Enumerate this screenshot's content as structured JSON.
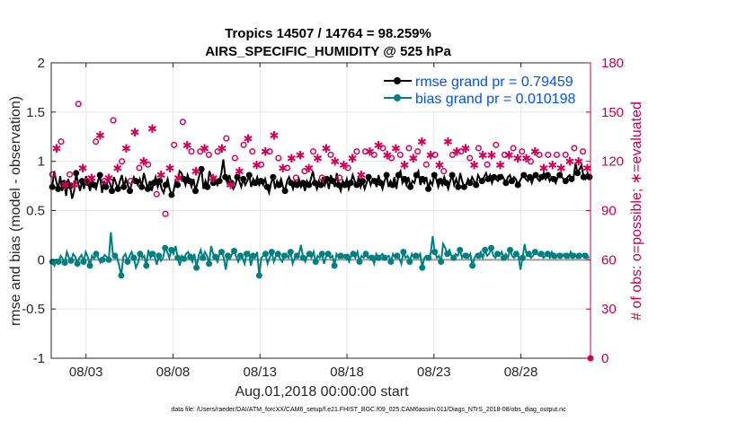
{
  "chart_data": {
    "type": "line",
    "title_line1": "Tropics 14507 / 14764 = 98.259%",
    "title_line2": "AIRS_SPECIFIC_HUMIDITY @ 525 hPa",
    "xlabel": "Aug.01,2018 00:00:00 start",
    "ylabel": "rmse and bias (model - observation)",
    "ylabel_right": "# of obs: o=possible; ∗=evaluated",
    "xlim": [
      0,
      31
    ],
    "ylim": [
      -1,
      2
    ],
    "ylim_right": [
      0,
      180
    ],
    "x_ticks": [
      {
        "value": 2,
        "label": "08/03"
      },
      {
        "value": 7,
        "label": "08/08"
      },
      {
        "value": 12,
        "label": "08/13"
      },
      {
        "value": 17,
        "label": "08/18"
      },
      {
        "value": 22,
        "label": "08/23"
      },
      {
        "value": 27,
        "label": "08/28"
      }
    ],
    "y_ticks": [
      {
        "value": -1,
        "label": "-1"
      },
      {
        "value": -0.5,
        "label": "-0.5"
      },
      {
        "value": 0,
        "label": "0"
      },
      {
        "value": 0.5,
        "label": "0.5"
      },
      {
        "value": 1,
        "label": "1"
      },
      {
        "value": 1.5,
        "label": "1.5"
      },
      {
        "value": 2,
        "label": "2"
      }
    ],
    "y_ticks_right": [
      {
        "value": 0,
        "label": "0"
      },
      {
        "value": 30,
        "label": "30"
      },
      {
        "value": 60,
        "label": "60"
      },
      {
        "value": 90,
        "label": "90"
      },
      {
        "value": 120,
        "label": "120"
      },
      {
        "value": 150,
        "label": "150"
      },
      {
        "value": 180,
        "label": "180"
      }
    ],
    "grid": true,
    "legend_position": "top-right",
    "series": [
      {
        "name": "rmse grand pr = 0.79459",
        "axis": "left",
        "color": "#000000",
        "values": [
          0.74,
          0.9,
          0.8,
          0.72,
          0.85,
          0.7,
          0.78,
          0.65,
          0.82,
          0.75,
          0.62,
          0.7,
          0.88,
          0.78,
          0.7,
          0.8,
          0.72,
          0.85,
          0.78,
          0.7,
          0.82,
          0.76,
          0.72,
          0.8,
          0.86,
          0.68,
          0.8,
          0.74,
          0.82,
          0.78,
          0.7,
          0.84,
          0.78,
          0.72,
          0.8,
          0.86,
          0.74,
          0.82,
          0.76,
          0.7,
          0.78,
          0.84,
          0.8,
          0.76,
          0.82,
          0.74,
          0.88,
          0.8,
          0.72,
          0.8,
          0.7,
          0.78,
          0.84,
          0.74,
          0.8,
          0.72,
          0.68,
          0.76,
          0.82,
          0.72,
          0.66,
          0.7,
          0.8,
          0.76,
          0.9,
          0.88,
          0.82,
          0.76,
          0.86,
          0.8,
          0.74,
          0.82,
          0.7,
          0.78,
          0.86,
          0.92,
          0.72,
          0.8,
          0.74,
          0.9,
          0.84,
          0.78,
          0.82,
          0.76,
          0.8,
          0.88,
          1.02,
          0.84,
          0.78,
          0.86,
          0.78,
          0.72,
          0.76,
          0.84,
          0.8,
          0.74,
          0.82,
          0.76,
          0.8,
          0.86,
          0.74,
          0.82,
          0.78,
          0.84,
          0.76,
          0.8,
          0.76,
          0.82,
          0.74,
          0.68,
          0.78,
          0.84,
          0.72,
          0.8,
          0.76,
          0.82,
          0.74,
          0.7,
          0.8,
          0.84,
          0.78,
          0.72,
          0.8,
          0.76,
          0.82,
          0.74,
          0.78,
          0.7,
          0.8,
          0.76,
          0.82,
          0.9,
          0.78,
          0.72,
          0.8,
          0.76,
          0.84,
          0.76,
          0.82,
          0.72,
          0.86,
          0.8,
          0.74,
          0.88,
          0.76,
          0.7,
          0.8,
          0.76,
          0.82,
          0.72,
          0.78,
          0.86,
          0.8,
          0.76,
          0.84,
          0.74,
          0.8,
          0.72,
          0.78,
          0.84,
          0.76,
          0.82,
          0.8,
          0.74,
          0.86,
          0.78,
          0.72,
          0.8,
          0.86,
          0.74,
          0.8,
          0.76,
          0.84,
          0.72,
          0.86,
          0.9,
          0.78,
          0.82,
          0.76,
          0.84,
          0.74,
          0.8,
          0.78,
          0.86,
          0.9,
          0.76,
          0.82,
          0.78,
          0.84,
          0.72,
          0.8,
          0.76,
          0.86,
          0.82,
          0.74,
          0.8,
          0.76,
          0.84,
          0.78,
          0.72,
          0.8,
          0.86,
          0.76,
          0.82,
          0.74,
          0.88,
          0.8,
          0.74,
          0.76,
          0.82,
          0.78,
          0.84,
          0.8,
          0.76,
          0.86,
          0.82,
          0.8,
          0.84,
          0.88,
          0.82,
          0.86,
          0.78,
          0.84,
          0.82,
          0.8,
          0.84,
          0.86,
          0.82,
          0.78,
          0.84,
          0.86,
          0.8,
          0.84,
          0.82,
          0.76,
          0.8,
          0.84,
          0.86,
          0.82,
          0.8,
          0.84,
          0.78,
          0.84,
          0.86,
          0.82,
          0.8,
          0.84,
          0.88,
          0.82,
          0.86,
          0.8,
          0.84,
          0.82,
          0.78,
          0.84,
          0.86,
          0.84,
          0.82,
          0.8,
          0.84,
          0.86,
          0.82,
          0.84,
          0.98,
          0.88,
          0.92,
          0.96,
          0.84,
          0.82,
          0.88,
          0.84
        ]
      },
      {
        "name": "bias grand pr = 0.010198",
        "axis": "left",
        "color": "#008080",
        "values": [
          -0.02,
          -0.06,
          0.0,
          -0.02,
          0.04,
          0.01,
          -0.03,
          0.08,
          0.02,
          -0.01,
          0.06,
          0.03,
          -0.04,
          0.02,
          0.05,
          -0.02,
          0.08,
          0.03,
          -0.06,
          0.04,
          0.01,
          0.06,
          0.02,
          -0.03,
          0.0,
          0.05,
          0.03,
          0.0,
          0.28,
          0.06,
          0.04,
          0.02,
          -0.06,
          -0.16,
          0.03,
          0.06,
          -0.02,
          0.04,
          0.08,
          0.02,
          -0.08,
          -0.03,
          0.06,
          0.02,
          0.04,
          -0.06,
          0.1,
          0.02,
          0.06,
          0.03,
          -0.05,
          0.04,
          -0.01,
          0.02,
          0.12,
          0.08,
          0.02,
          0.1,
          0.06,
          0.14,
          0.02,
          -0.06,
          0.04,
          0.01,
          0.06,
          0.08,
          0.03,
          -0.02,
          0.06,
          -0.08,
          0.04,
          0.1,
          0.02,
          0.08,
          0.04,
          -0.04,
          0.14,
          0.06,
          0.03,
          -0.02,
          0.06,
          0.08,
          0.02,
          -0.1,
          0.04,
          0.01,
          0.06,
          0.09,
          0.03,
          -0.02,
          0.04,
          0.02,
          -0.04,
          0.06,
          0.08,
          -0.06,
          0.04,
          0.02,
          0.08,
          -0.16,
          0.02,
          0.04,
          0.06,
          -0.04,
          0.02,
          0.08,
          -0.02,
          0.04,
          0.06,
          0.01,
          -0.02,
          0.04,
          0.06,
          0.02,
          0.08,
          -0.04,
          0.02,
          0.04,
          0.06,
          0.15,
          0.02,
          -0.02,
          0.04,
          0.06,
          0.02,
          0.08,
          -0.02,
          0.04,
          0.02,
          0.06,
          -0.04,
          0.03,
          0.06,
          0.02,
          0.04,
          -0.06,
          0.06,
          0.02,
          0.04,
          0.02,
          0.05,
          0.03,
          -0.02,
          0.04,
          0.06,
          0.02,
          0.08,
          -0.02,
          0.04,
          0.02,
          0.06,
          0.02,
          0.04,
          0.02,
          -0.04,
          0.06,
          0.02,
          0.04,
          0.06,
          0.02,
          0.03,
          0.04,
          -0.02,
          0.06,
          0.02,
          0.04,
          0.02,
          -0.04,
          0.08,
          0.02,
          0.04,
          -0.02,
          0.06,
          0.02,
          0.04,
          0.02,
          0.06,
          -0.08,
          0.02,
          0.04,
          0.02,
          0.06,
          0.24,
          0.08,
          0.02,
          0.04,
          -0.02,
          0.16,
          0.12,
          0.06,
          0.1,
          0.04,
          0.02,
          0.06,
          0.04,
          0.1,
          0.02,
          0.06,
          0.04,
          0.02,
          0.06,
          -0.06,
          0.02,
          0.06,
          0.04,
          0.08,
          0.02,
          0.1,
          0.04,
          0.06,
          0.12,
          0.04,
          0.02,
          0.06,
          0.04,
          0.08,
          0.02,
          0.06,
          0.02,
          0.1,
          0.04,
          0.02,
          0.06,
          0.04,
          -0.1,
          0.02,
          0.16,
          0.04,
          0.06,
          0.02,
          0.04,
          0.08,
          0.06,
          0.04,
          0.06,
          0.02,
          0.04,
          0.06,
          0.02,
          0.08,
          0.04,
          0.02,
          0.06,
          0.04,
          0.03,
          0.06,
          0.04,
          0.02,
          0.08,
          0.04,
          0.06,
          0.02,
          0.04,
          0.03,
          0.06,
          0.04,
          0.02,
          0.03
        ]
      },
      {
        "name": "possible",
        "axis": "right",
        "color": "#d6005a",
        "marker": "circle",
        "values": [
          112,
          90,
          131,
          115,
          132,
          118,
          108,
          96,
          112,
          120,
          108,
          124,
          155,
          112,
          118,
          134,
          108,
          124,
          112,
          146,
          132,
          120,
          138,
          110,
          108,
          124,
          112,
          116,
          145,
          118,
          118,
          111,
          120,
          146,
          130,
          114,
          108,
          122,
          140,
          126,
          116,
          110,
          122,
          134,
          118,
          108,
          142,
          114,
          100,
          124,
          114,
          122,
          88,
          120,
          118,
          110,
          130,
          124,
          112,
          120,
          144,
          122,
          132,
          118,
          126,
          134,
          116,
          120,
          126,
          142,
          130,
          116,
          124,
          128,
          112,
          140,
          126,
          120,
          130,
          122,
          134,
          118,
          108,
          126,
          122,
          124,
          116,
          120,
          130,
          122,
          136,
          116,
          126,
          110,
          120,
          130,
          118,
          108,
          128,
          114,
          126,
          162,
          138,
          120,
          122,
          126,
          118,
          134,
          116,
          122,
          124,
          128,
          110,
          120,
          126,
          134,
          114,
          126,
          118,
          136,
          126,
          116,
          124,
          120,
          110,
          128,
          130,
          118,
          124,
          114,
          122,
          126,
          110,
          128,
          120,
          128,
          116,
          140,
          124,
          118,
          126,
          124,
          114,
          122,
          126,
          110,
          128,
          130,
          124,
          118,
          132,
          114,
          128,
          136,
          126,
          120,
          122,
          114,
          130,
          118,
          124,
          126,
          120,
          112,
          128,
          132,
          124,
          120,
          126,
          116,
          134,
          122,
          118,
          130,
          126,
          112,
          124,
          128,
          120,
          126,
          114,
          122,
          134,
          118,
          124,
          120,
          128,
          110,
          126,
          124,
          130,
          118,
          122,
          126,
          120,
          114,
          128,
          132,
          126,
          120,
          118,
          124,
          126,
          122,
          130,
          116,
          120,
          126,
          124,
          118,
          126,
          122,
          128,
          120,
          124,
          116,
          126,
          122,
          124,
          118,
          120,
          126,
          128,
          122,
          124,
          120,
          118,
          126,
          124,
          122,
          120,
          126,
          124,
          122,
          118,
          120,
          124,
          126,
          122,
          120,
          128,
          124,
          122,
          120,
          126,
          124,
          118,
          122
        ]
      },
      {
        "name": "evaluated",
        "axis": "right",
        "color": "#d6005a",
        "marker": "asterisk",
        "values": [
          110,
          88,
          128,
          112,
          130,
          116,
          106,
          94,
          110,
          118,
          106,
          122,
          153,
          110,
          116,
          132,
          106,
          122,
          110,
          144,
          130,
          118,
          136,
          108,
          106,
          122,
          110,
          114,
          143,
          116,
          116,
          109,
          118,
          144,
          128,
          112,
          106,
          120,
          138,
          124,
          114,
          108,
          120,
          132,
          116,
          106,
          140,
          112,
          98,
          122,
          112,
          120,
          86,
          118,
          116,
          108,
          128,
          122,
          110,
          118,
          142,
          120,
          130,
          116,
          124,
          132,
          114,
          118,
          124,
          140,
          128,
          114,
          122,
          126,
          110,
          138,
          124,
          118,
          128,
          120,
          132,
          116,
          106,
          124,
          120,
          122,
          114,
          118,
          128,
          120,
          134,
          114,
          124,
          108,
          118,
          128,
          116,
          106,
          126,
          112,
          124,
          156,
          136,
          118,
          120,
          124,
          116,
          132,
          114,
          120,
          122,
          126,
          108,
          118,
          124,
          132,
          112,
          124,
          116,
          134,
          124,
          114,
          122,
          118,
          108,
          126,
          128,
          116,
          122,
          112,
          120,
          124,
          108,
          126,
          118,
          126,
          114,
          138,
          122,
          116,
          124,
          122,
          112,
          120,
          124,
          108,
          126,
          128,
          122,
          116,
          130,
          112,
          126,
          134,
          124,
          118,
          120,
          112,
          128,
          116,
          122,
          124,
          118,
          110,
          126,
          130,
          122,
          118,
          124,
          114,
          132,
          120,
          116,
          128,
          124,
          110,
          122,
          126,
          118,
          124,
          112,
          120,
          132,
          116,
          122,
          118,
          126,
          108,
          124,
          122,
          128,
          116,
          120,
          124,
          118,
          112,
          126,
          130,
          124,
          118,
          116,
          122,
          124,
          120,
          128,
          114,
          118,
          124,
          122,
          116,
          124,
          120,
          126,
          118,
          122,
          114,
          124,
          120,
          122,
          116,
          118,
          124,
          126,
          120,
          122,
          118,
          116,
          124,
          122,
          120,
          118,
          124,
          122,
          120,
          116,
          118,
          122,
          124,
          120,
          118,
          126,
          122,
          120,
          118,
          124,
          122,
          116,
          120
        ]
      }
    ],
    "legend": [
      {
        "label": "rmse grand pr = 0.79459",
        "color": "#0050ff",
        "line_color": "#000000"
      },
      {
        "label": "bias grand pr = 0.010198",
        "color": "#0050ff",
        "line_color": "#008080"
      }
    ]
  },
  "footer": "data file: /Users/raeder/DAI/ATM_forcXX/CAM6_setup/f.e21.FHIST_BGC.f09_025.CAM6assim.011/Diags_NTrS_2018-08/obs_diag_output.nc"
}
